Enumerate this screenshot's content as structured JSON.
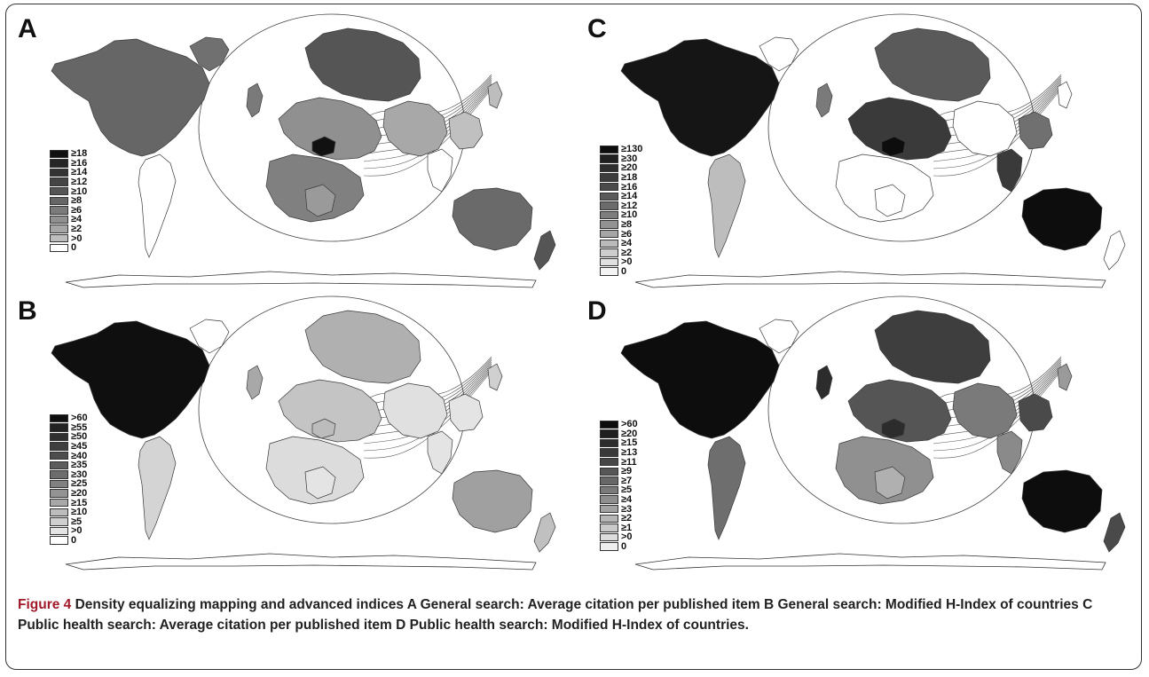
{
  "panels": [
    {
      "id": "A",
      "label": "A",
      "legend": [
        {
          "text": "≥18",
          "color": "#111111"
        },
        {
          "text": "≥16",
          "color": "#262626"
        },
        {
          "text": "≥14",
          "color": "#333333"
        },
        {
          "text": "≥12",
          "color": "#444444"
        },
        {
          "text": "≥10",
          "color": "#555555"
        },
        {
          "text": "≥8",
          "color": "#666666"
        },
        {
          "text": "≥6",
          "color": "#7b7b7b"
        },
        {
          "text": "≥4",
          "color": "#909090"
        },
        {
          "text": "≥2",
          "color": "#a6a6a6"
        },
        {
          "text": ">0",
          "color": "#bdbdbd"
        },
        {
          "text": "0",
          "color": "#ffffff"
        }
      ],
      "fills": {
        "northamerica": "#666666",
        "greenland": "#707070",
        "southamerica": "#ffffff",
        "europe": "#909090",
        "russia": "#555555",
        "africa": "#808080",
        "centralafrica": "#9a9a9a",
        "asia": "#a8a8a8",
        "india": "#ffffff",
        "seasia": "#c0c0c0",
        "australia": "#6a6a6a",
        "nz": "#555555",
        "uk": "#7a7a7a",
        "japan": "#bdbdbd",
        "hotspot": "#111111"
      }
    },
    {
      "id": "B",
      "label": "B",
      "legend": [
        {
          "text": ">60",
          "color": "#0f0f0f"
        },
        {
          "text": "≥55",
          "color": "#222222"
        },
        {
          "text": "≥50",
          "color": "#303030"
        },
        {
          "text": "≥45",
          "color": "#3f3f3f"
        },
        {
          "text": "≥40",
          "color": "#4d4d4d"
        },
        {
          "text": "≥35",
          "color": "#5c5c5c"
        },
        {
          "text": "≥30",
          "color": "#6d6d6d"
        },
        {
          "text": "≥25",
          "color": "#808080"
        },
        {
          "text": "≥20",
          "color": "#939393"
        },
        {
          "text": "≥15",
          "color": "#a8a8a8"
        },
        {
          "text": "≥10",
          "color": "#bcbcbc"
        },
        {
          "text": "≥5",
          "color": "#cfcfcf"
        },
        {
          "text": ">0",
          "color": "#e4e4e4"
        },
        {
          "text": "0",
          "color": "#ffffff"
        }
      ],
      "fills": {
        "northamerica": "#0f0f0f",
        "greenland": "#ffffff",
        "southamerica": "#d4d4d4",
        "europe": "#c4c4c4",
        "russia": "#b0b0b0",
        "africa": "#dcdcdc",
        "centralafrica": "#e4e4e4",
        "asia": "#e0e0e0",
        "india": "#e4e4e4",
        "seasia": "#e4e4e4",
        "australia": "#a0a0a0",
        "nz": "#c0c0c0",
        "uk": "#a8a8a8",
        "japan": "#d0d0d0",
        "hotspot": "#bcbcbc"
      }
    },
    {
      "id": "C",
      "label": "C",
      "legend": [
        {
          "text": "≥130",
          "color": "#0d0d0d"
        },
        {
          "text": "≥30",
          "color": "#202020"
        },
        {
          "text": "≥20",
          "color": "#2e2e2e"
        },
        {
          "text": "≥18",
          "color": "#3c3c3c"
        },
        {
          "text": "≥16",
          "color": "#4a4a4a"
        },
        {
          "text": "≥14",
          "color": "#5a5a5a"
        },
        {
          "text": "≥12",
          "color": "#6b6b6b"
        },
        {
          "text": "≥10",
          "color": "#7e7e7e"
        },
        {
          "text": "≥8",
          "color": "#929292"
        },
        {
          "text": "≥6",
          "color": "#a6a6a6"
        },
        {
          "text": "≥4",
          "color": "#bababa"
        },
        {
          "text": "≥2",
          "color": "#cdcdcd"
        },
        {
          "text": ">0",
          "color": "#e0e0e0"
        },
        {
          "text": "0",
          "color": "#f4f4f4"
        }
      ],
      "fills": {
        "northamerica": "#151515",
        "greenland": "#ffffff",
        "southamerica": "#bdbdbd",
        "europe": "#3a3a3a",
        "russia": "#5a5a5a",
        "africa": "#ffffff",
        "centralafrica": "#ffffff",
        "asia": "#ffffff",
        "india": "#3a3a3a",
        "seasia": "#707070",
        "australia": "#0d0d0d",
        "nz": "#ffffff",
        "uk": "#7a7a7a",
        "japan": "#ffffff",
        "hotspot": "#0d0d0d"
      }
    },
    {
      "id": "D",
      "label": "D",
      "legend": [
        {
          "text": ">60",
          "color": "#0d0d0d"
        },
        {
          "text": "≥20",
          "color": "#1f1f1f"
        },
        {
          "text": "≥15",
          "color": "#2c2c2c"
        },
        {
          "text": "≥13",
          "color": "#393939"
        },
        {
          "text": "≥11",
          "color": "#474747"
        },
        {
          "text": "≥9",
          "color": "#565656"
        },
        {
          "text": "≥7",
          "color": "#676767"
        },
        {
          "text": "≥5",
          "color": "#7a7a7a"
        },
        {
          "text": "≥4",
          "color": "#8e8e8e"
        },
        {
          "text": "≥3",
          "color": "#a2a2a2"
        },
        {
          "text": "≥2",
          "color": "#b6b6b6"
        },
        {
          "text": "≥1",
          "color": "#c9c9c9"
        },
        {
          "text": ">0",
          "color": "#dcdcdc"
        },
        {
          "text": "0",
          "color": "#efefef"
        }
      ],
      "fills": {
        "northamerica": "#0d0d0d",
        "greenland": "#ffffff",
        "southamerica": "#6e6e6e",
        "europe": "#555555",
        "russia": "#3e3e3e",
        "africa": "#909090",
        "centralafrica": "#b0b0b0",
        "asia": "#7a7a7a",
        "india": "#8a8a8a",
        "seasia": "#4a4a4a",
        "australia": "#0d0d0d",
        "nz": "#4a4a4a",
        "uk": "#2c2c2c",
        "japan": "#9a9a9a",
        "hotspot": "#2c2c2c"
      }
    }
  ],
  "caption": {
    "label": "Figure 4",
    "text": " Density equalizing mapping and advanced indices A General search: Average citation per published item B General search: Modified H-Index of countries C Public health search: Average citation per published item D Public health search: Modified H-Index of countries."
  }
}
